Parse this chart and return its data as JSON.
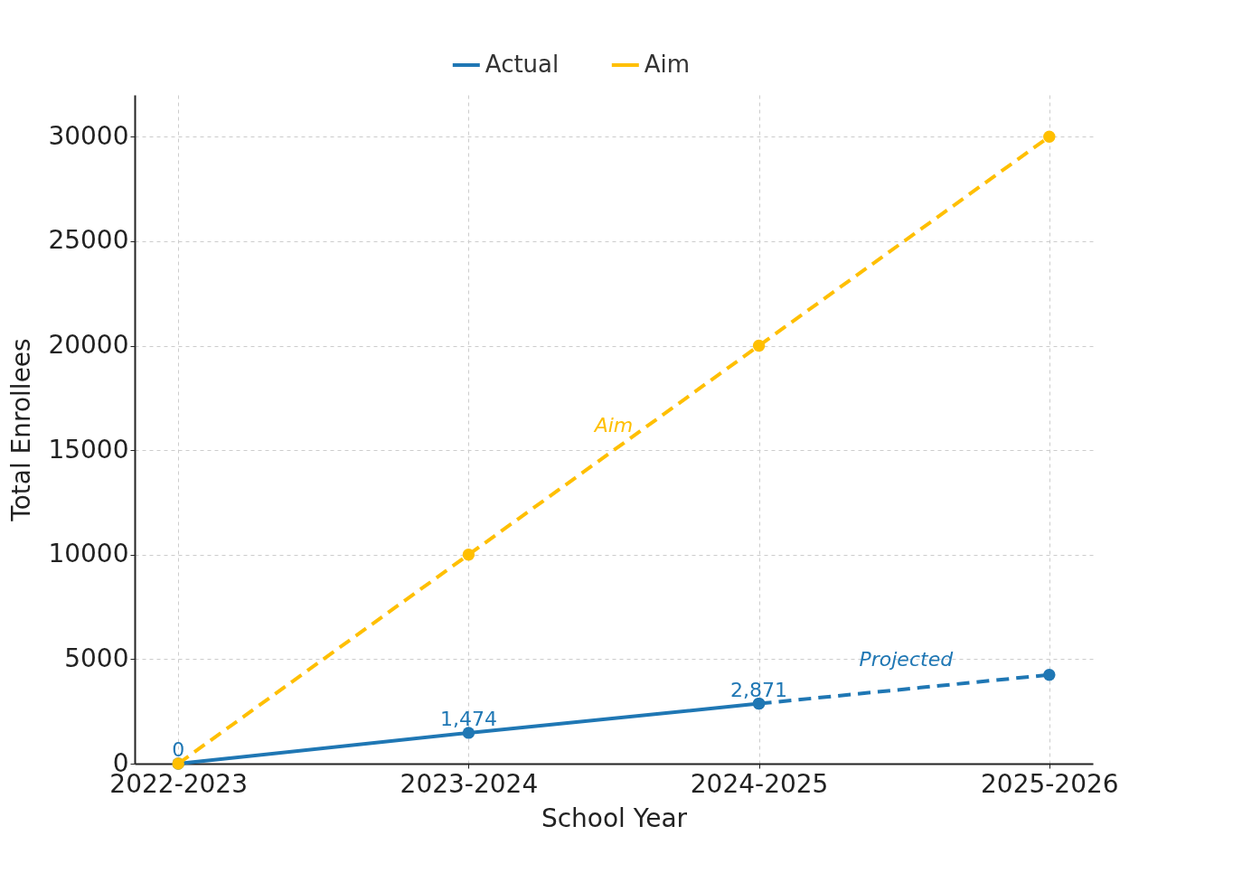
{
  "chart_data": {
    "type": "line",
    "xlabel": "School Year",
    "ylabel": "Total Enrollees",
    "categories": [
      "2022-2023",
      "2023-2024",
      "2024-2025",
      "2025-2026"
    ],
    "series": [
      {
        "name": "Actual",
        "color": "#1f77b4",
        "values": [
          0,
          1474,
          2871,
          null
        ],
        "value_labels": [
          "0",
          "1,474",
          "2,871",
          null
        ],
        "line_style": "solid"
      },
      {
        "color": "#1f77b4",
        "values": [
          null,
          null,
          2871,
          4250
        ],
        "line_style": "dashed"
      },
      {
        "name": "Aim",
        "color": "#ffbf00",
        "values": [
          0,
          10000,
          20000,
          30000
        ],
        "line_style": "dashed"
      }
    ],
    "annotations": [
      "Aim",
      "Projected"
    ],
    "ylim": [
      0,
      32000
    ],
    "yticks": [
      0,
      5000,
      10000,
      15000,
      20000,
      25000,
      30000
    ],
    "grid": true,
    "legend": "top",
    "marker": "circle"
  }
}
